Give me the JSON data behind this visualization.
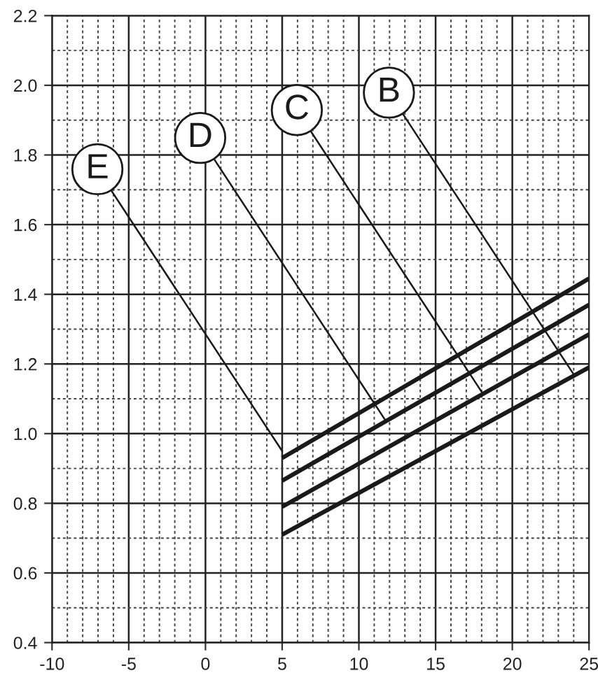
{
  "chart_data": {
    "type": "line",
    "x": [
      5,
      25
    ],
    "series": [
      {
        "color": "#1a1a1a",
        "values": [
          0.93,
          1.445
        ]
      },
      {
        "color": "#1a1a1a",
        "values": [
          0.865,
          1.37
        ]
      },
      {
        "color": "#1a1a1a",
        "values": [
          0.79,
          1.285
        ]
      },
      {
        "color": "#1a1a1a",
        "values": [
          0.71,
          1.19
        ]
      }
    ],
    "annotations": [
      {
        "text": "E",
        "x": 5,
        "y": 0.95
      },
      {
        "text": "D",
        "x": 11.7,
        "y": 1.04
      },
      {
        "text": "C",
        "x": 18,
        "y": 1.12
      },
      {
        "text": "B",
        "x": 24,
        "y": 1.17
      }
    ],
    "xlim": [
      -10,
      25
    ],
    "xticks": [
      -10,
      -5,
      0,
      5,
      10,
      15,
      20,
      25
    ],
    "ylim": [
      0.4,
      2.2
    ],
    "yticks": [
      {
        "value": 0.4,
        "label": "0.4"
      },
      {
        "value": 0.6,
        "label": "0.6"
      },
      {
        "value": 0.8,
        "label": "0.8"
      },
      {
        "value": 1.0,
        "label": "1.0"
      },
      {
        "value": 1.2,
        "label": "1.2"
      },
      {
        "value": 1.4,
        "label": "1.4"
      },
      {
        "value": 1.6,
        "label": "1.6"
      },
      {
        "value": 1.8,
        "label": "1.8"
      },
      {
        "value": 2.0,
        "label": "2.0"
      },
      {
        "value": 2.2,
        "label": "2.2"
      }
    ],
    "grid": true,
    "marker": "none",
    "line_style": "solid",
    "legend": false
  }
}
